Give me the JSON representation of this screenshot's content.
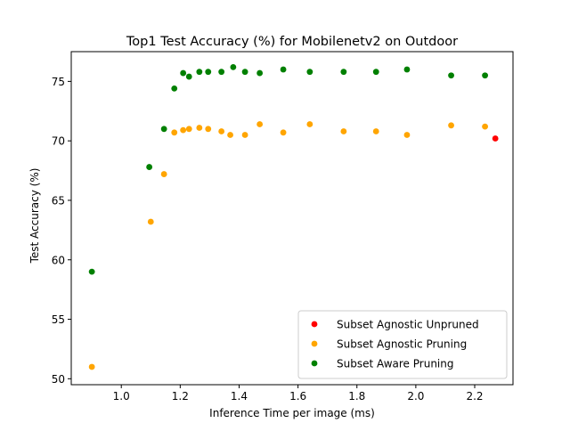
{
  "chart_data": {
    "type": "scatter",
    "title": "Top1 Test Accuracy (%) for Mobilenetv2 on Outdoor",
    "xlabel": "Inference Time per image (ms)",
    "ylabel": "Test Accuracy (%)",
    "xlim": [
      0.83,
      2.33
    ],
    "ylim": [
      49.5,
      77.5
    ],
    "xticks": [
      1.0,
      1.2,
      1.4,
      1.6,
      1.8,
      2.0,
      2.2
    ],
    "xtick_labels": [
      "1.0",
      "1.2",
      "1.4",
      "1.6",
      "1.8",
      "2.0",
      "2.2"
    ],
    "yticks": [
      50,
      55,
      60,
      65,
      70,
      75
    ],
    "ytick_labels": [
      "50",
      "55",
      "60",
      "65",
      "70",
      "75"
    ],
    "grid": false,
    "legend_position": "lower-right",
    "series": [
      {
        "name": "Subset Agnostic Unpruned",
        "color": "#ff0000",
        "points": [
          [
            2.27,
            70.2
          ]
        ]
      },
      {
        "name": "Subset Agnostic Pruning",
        "color": "#ffa500",
        "points": [
          [
            0.9,
            51.0
          ],
          [
            1.1,
            63.2
          ],
          [
            1.145,
            67.2
          ],
          [
            1.18,
            70.7
          ],
          [
            1.21,
            70.9
          ],
          [
            1.23,
            71.0
          ],
          [
            1.265,
            71.1
          ],
          [
            1.295,
            71.0
          ],
          [
            1.34,
            70.8
          ],
          [
            1.37,
            70.5
          ],
          [
            1.42,
            70.5
          ],
          [
            1.47,
            71.4
          ],
          [
            1.55,
            70.7
          ],
          [
            1.64,
            71.4
          ],
          [
            1.755,
            70.8
          ],
          [
            1.865,
            70.8
          ],
          [
            1.97,
            70.5
          ],
          [
            2.12,
            71.3
          ],
          [
            2.235,
            71.2
          ]
        ]
      },
      {
        "name": "Subset Aware Pruning",
        "color": "#008000",
        "points": [
          [
            0.9,
            59.0
          ],
          [
            1.095,
            67.8
          ],
          [
            1.145,
            71.0
          ],
          [
            1.18,
            74.4
          ],
          [
            1.21,
            75.7
          ],
          [
            1.23,
            75.4
          ],
          [
            1.265,
            75.8
          ],
          [
            1.295,
            75.8
          ],
          [
            1.34,
            75.8
          ],
          [
            1.38,
            76.2
          ],
          [
            1.42,
            75.8
          ],
          [
            1.47,
            75.7
          ],
          [
            1.55,
            76.0
          ],
          [
            1.64,
            75.8
          ],
          [
            1.755,
            75.8
          ],
          [
            1.865,
            75.8
          ],
          [
            1.97,
            76.0
          ],
          [
            2.12,
            75.5
          ],
          [
            2.235,
            75.5
          ]
        ]
      }
    ]
  }
}
